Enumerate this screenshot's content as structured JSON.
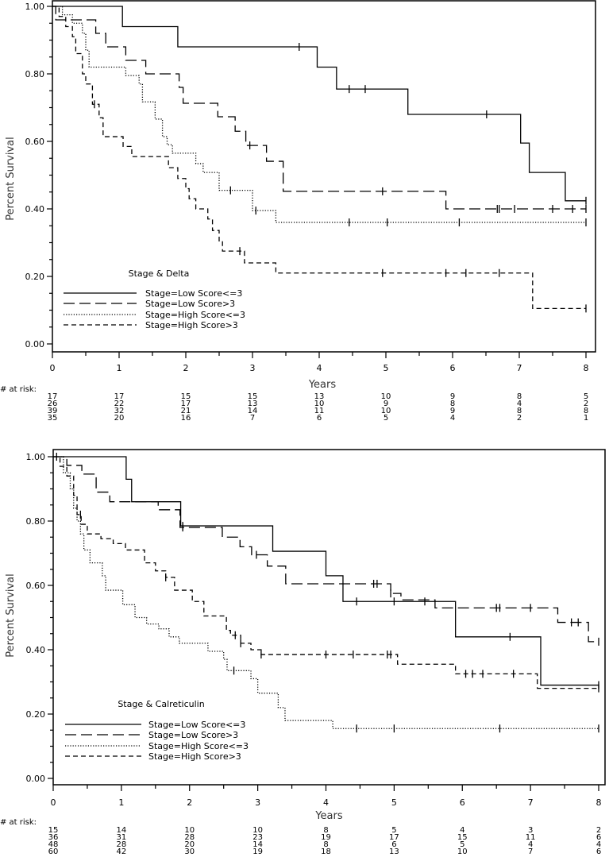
{
  "chart_data": [
    {
      "type": "line",
      "subtype": "kaplan-meier",
      "title": "Stage & Delta",
      "xlabel": "Years",
      "ylabel": "Percent Survival",
      "xlim": [
        0,
        8
      ],
      "ylim": [
        0,
        1
      ],
      "x_ticks": [
        "0",
        "1",
        "2",
        "3",
        "4",
        "5",
        "6",
        "7",
        "8"
      ],
      "y_ticks": [
        "0.00",
        "0.20",
        "0.40",
        "0.60",
        "0.80",
        "1.00"
      ],
      "legend_position": "bottom-left",
      "at_risk_label": "# at risk:",
      "series": [
        {
          "name": "Stage=Low Score<=3",
          "style": "solid",
          "steps": [
            [
              0,
              1
            ],
            [
              1.05,
              0.94
            ],
            [
              1.88,
              0.88
            ],
            [
              3.97,
              0.82
            ],
            [
              4.26,
              0.755
            ],
            [
              5.33,
              0.68
            ],
            [
              7.02,
              0.595
            ],
            [
              7.15,
              0.508
            ],
            [
              7.69,
              0.424
            ]
          ],
          "censored": [
            3.7,
            4.45,
            4.69,
            6.51,
            8.0
          ],
          "at_risk": [
            "17",
            "17",
            "15",
            "15",
            "13",
            "10",
            "9",
            "8",
            "5"
          ]
        },
        {
          "name": "Stage=Low Score>3",
          "style": "long-dash",
          "steps": [
            [
              0,
              1
            ],
            [
              0.05,
              0.96
            ],
            [
              0.65,
              0.92
            ],
            [
              0.8,
              0.88
            ],
            [
              1.1,
              0.84
            ],
            [
              1.4,
              0.8
            ],
            [
              1.9,
              0.76
            ],
            [
              1.96,
              0.713
            ],
            [
              2.48,
              0.673
            ],
            [
              2.74,
              0.63
            ],
            [
              2.9,
              0.588
            ],
            [
              3.21,
              0.541
            ],
            [
              3.46,
              0.452
            ],
            [
              5.9,
              0.4
            ]
          ],
          "censored": [
            2.96,
            4.95,
            6.67,
            6.7,
            6.93,
            7.5,
            7.8,
            8.0
          ],
          "at_risk": [
            "26",
            "22",
            "17",
            "13",
            "10",
            "9",
            "8",
            "4",
            "2"
          ]
        },
        {
          "name": "Stage=High Score<=3",
          "style": "dotted",
          "steps": [
            [
              0,
              1
            ],
            [
              0.15,
              0.975
            ],
            [
              0.3,
              0.95
            ],
            [
              0.45,
              0.92
            ],
            [
              0.5,
              0.87
            ],
            [
              0.55,
              0.82
            ],
            [
              1.1,
              0.795
            ],
            [
              1.3,
              0.77
            ],
            [
              1.35,
              0.717
            ],
            [
              1.54,
              0.666
            ],
            [
              1.65,
              0.614
            ],
            [
              1.72,
              0.59
            ],
            [
              1.8,
              0.565
            ],
            [
              2.15,
              0.534
            ],
            [
              2.26,
              0.508
            ],
            [
              2.5,
              0.455
            ],
            [
              3.0,
              0.395
            ],
            [
              3.35,
              0.36
            ]
          ],
          "censored": [
            2.67,
            3.05,
            4.45,
            5.02,
            6.1,
            8.0
          ],
          "at_risk": [
            "39",
            "32",
            "21",
            "14",
            "11",
            "10",
            "9",
            "8",
            "8"
          ]
        },
        {
          "name": "Stage=High Score>3",
          "style": "short-dash",
          "steps": [
            [
              0,
              1
            ],
            [
              0.1,
              0.97
            ],
            [
              0.2,
              0.94
            ],
            [
              0.3,
              0.91
            ],
            [
              0.35,
              0.86
            ],
            [
              0.45,
              0.8
            ],
            [
              0.5,
              0.77
            ],
            [
              0.6,
              0.71
            ],
            [
              0.7,
              0.67
            ],
            [
              0.76,
              0.614
            ],
            [
              1.06,
              0.585
            ],
            [
              1.19,
              0.555
            ],
            [
              1.74,
              0.522
            ],
            [
              1.88,
              0.49
            ],
            [
              2.0,
              0.46
            ],
            [
              2.05,
              0.43
            ],
            [
              2.15,
              0.4
            ],
            [
              2.33,
              0.37
            ],
            [
              2.4,
              0.336
            ],
            [
              2.5,
              0.305
            ],
            [
              2.55,
              0.275
            ],
            [
              2.88,
              0.24
            ],
            [
              3.35,
              0.21
            ],
            [
              7.2,
              0.105
            ]
          ],
          "censored": [
            0.63,
            2.81,
            4.95,
            5.9,
            6.2,
            6.7,
            8.0
          ],
          "at_risk": [
            "35",
            "20",
            "16",
            "7",
            "6",
            "5",
            "4",
            "2",
            "1"
          ]
        }
      ]
    },
    {
      "type": "line",
      "subtype": "kaplan-meier",
      "title": "Stage & Calreticulin",
      "xlabel": "Years",
      "ylabel": "Percent Survival",
      "xlim": [
        0,
        8
      ],
      "ylim": [
        0,
        1
      ],
      "x_ticks": [
        "0",
        "1",
        "2",
        "3",
        "4",
        "5",
        "6",
        "7",
        "8"
      ],
      "y_ticks": [
        "0.00",
        "0.20",
        "0.40",
        "0.60",
        "0.80",
        "1.00"
      ],
      "legend_position": "bottom-left",
      "at_risk_label": "# at risk:",
      "series": [
        {
          "name": "Stage=Low Score<=3",
          "style": "solid",
          "steps": [
            [
              0,
              1
            ],
            [
              1.07,
              0.93
            ],
            [
              1.15,
              0.86
            ],
            [
              1.87,
              0.785
            ],
            [
              3.22,
              0.706
            ],
            [
              4.0,
              0.63
            ],
            [
              4.25,
              0.55
            ],
            [
              5.9,
              0.44
            ],
            [
              7.15,
              0.29
            ]
          ],
          "censored": [
            0.05,
            1.9,
            4.45,
            5.0,
            5.45,
            6.7,
            8.0
          ],
          "at_risk": [
            "15",
            "14",
            "10",
            "10",
            "8",
            "5",
            "4",
            "3",
            "2"
          ]
        },
        {
          "name": "Stage=Low Score>3",
          "style": "long-dash",
          "steps": [
            [
              0,
              1
            ],
            [
              0.2,
              0.973
            ],
            [
              0.42,
              0.946
            ],
            [
              0.63,
              0.89
            ],
            [
              0.83,
              0.86
            ],
            [
              1.54,
              0.835
            ],
            [
              1.86,
              0.78
            ],
            [
              2.48,
              0.75
            ],
            [
              2.74,
              0.72
            ],
            [
              2.91,
              0.695
            ],
            [
              3.14,
              0.66
            ],
            [
              3.41,
              0.605
            ],
            [
              4.95,
              0.575
            ],
            [
              5.1,
              0.555
            ],
            [
              5.6,
              0.53
            ],
            [
              7.4,
              0.485
            ],
            [
              7.85,
              0.425
            ]
          ],
          "censored": [
            1.9,
            2.98,
            4.7,
            4.75,
            4.95,
            6.5,
            6.55,
            7.0,
            7.6,
            7.7,
            8.0
          ],
          "at_risk": [
            "36",
            "31",
            "28",
            "23",
            "19",
            "17",
            "15",
            "11",
            "6"
          ]
        },
        {
          "name": "Stage=High Score<=3",
          "style": "dotted",
          "steps": [
            [
              0,
              1
            ],
            [
              0.15,
              0.95
            ],
            [
              0.25,
              0.9
            ],
            [
              0.3,
              0.84
            ],
            [
              0.35,
              0.8
            ],
            [
              0.4,
              0.76
            ],
            [
              0.45,
              0.71
            ],
            [
              0.54,
              0.67
            ],
            [
              0.72,
              0.63
            ],
            [
              0.77,
              0.585
            ],
            [
              1.02,
              0.54
            ],
            [
              1.2,
              0.5
            ],
            [
              1.37,
              0.48
            ],
            [
              1.55,
              0.465
            ],
            [
              1.7,
              0.44
            ],
            [
              1.85,
              0.42
            ],
            [
              2.27,
              0.395
            ],
            [
              2.5,
              0.37
            ],
            [
              2.55,
              0.335
            ],
            [
              2.9,
              0.31
            ],
            [
              3.0,
              0.265
            ],
            [
              3.3,
              0.22
            ],
            [
              3.4,
              0.18
            ],
            [
              4.1,
              0.155
            ]
          ],
          "censored": [
            2.65,
            4.45,
            5.0,
            6.55,
            8.0
          ],
          "at_risk": [
            "48",
            "28",
            "20",
            "14",
            "8",
            "6",
            "5",
            "4",
            "4"
          ]
        },
        {
          "name": "Stage=High Score>3",
          "style": "short-dash",
          "steps": [
            [
              0,
              1
            ],
            [
              0.1,
              0.97
            ],
            [
              0.2,
              0.94
            ],
            [
              0.3,
              0.88
            ],
            [
              0.35,
              0.82
            ],
            [
              0.41,
              0.79
            ],
            [
              0.5,
              0.76
            ],
            [
              0.7,
              0.745
            ],
            [
              0.88,
              0.73
            ],
            [
              1.06,
              0.71
            ],
            [
              1.34,
              0.67
            ],
            [
              1.5,
              0.645
            ],
            [
              1.65,
              0.625
            ],
            [
              1.78,
              0.585
            ],
            [
              2.04,
              0.55
            ],
            [
              2.21,
              0.505
            ],
            [
              2.54,
              0.46
            ],
            [
              2.6,
              0.445
            ],
            [
              2.75,
              0.42
            ],
            [
              2.9,
              0.4
            ],
            [
              3.05,
              0.385
            ],
            [
              5.05,
              0.355
            ],
            [
              5.9,
              0.325
            ],
            [
              7.1,
              0.28
            ]
          ],
          "censored": [
            0.4,
            1.65,
            2.67,
            2.75,
            3.05,
            4.0,
            4.4,
            4.9,
            4.95,
            6.05,
            6.15,
            6.3,
            6.75,
            8.0
          ],
          "at_risk": [
            "60",
            "42",
            "30",
            "19",
            "18",
            "13",
            "10",
            "7",
            "6"
          ]
        }
      ]
    }
  ]
}
